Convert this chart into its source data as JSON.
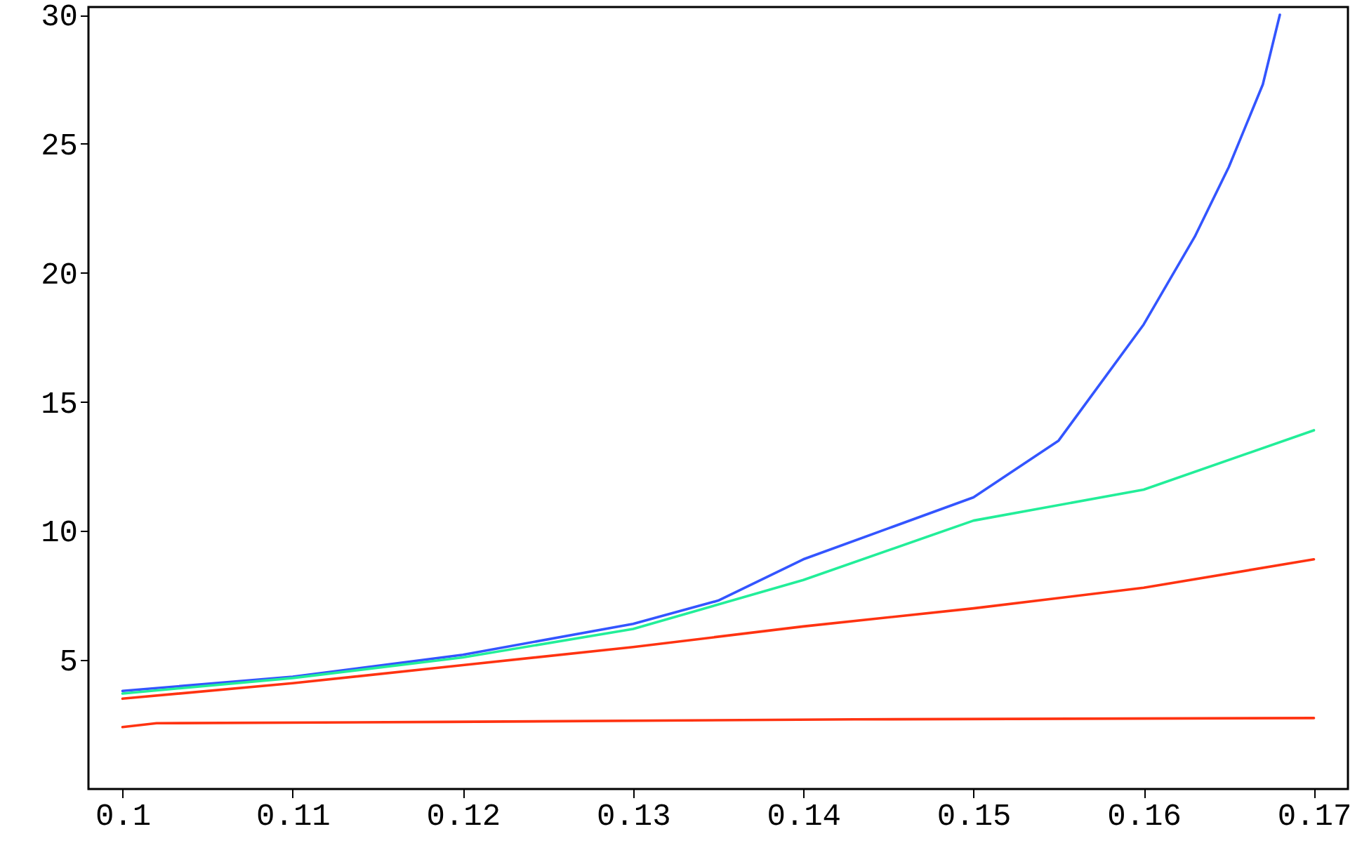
{
  "chart_data": {
    "type": "line",
    "xlim": [
      0.098,
      0.172
    ],
    "ylim": [
      0,
      30.3
    ],
    "xticks": [
      0.1,
      0.11,
      0.12,
      0.13,
      0.14,
      0.15,
      0.16,
      0.17
    ],
    "yticks": [
      5,
      10,
      15,
      20,
      25,
      30
    ],
    "series": [
      {
        "color": "#3355ff",
        "x": [
          0.1,
          0.11,
          0.12,
          0.13,
          0.135,
          0.14,
          0.145,
          0.15,
          0.155,
          0.16,
          0.163,
          0.165,
          0.167,
          0.168
        ],
        "values": [
          3.8,
          4.35,
          5.2,
          6.4,
          7.3,
          8.9,
          10.1,
          11.3,
          13.5,
          18.0,
          21.4,
          24.1,
          27.3,
          30
        ]
      },
      {
        "color": "#22ee99",
        "x": [
          0.1,
          0.11,
          0.12,
          0.13,
          0.14,
          0.15,
          0.16,
          0.17
        ],
        "values": [
          3.7,
          4.3,
          5.1,
          6.2,
          8.1,
          10.4,
          11.6,
          13.9
        ]
      },
      {
        "color": "#ff3311",
        "x": [
          0.1,
          0.11,
          0.12,
          0.13,
          0.14,
          0.15,
          0.16,
          0.17
        ],
        "values": [
          3.5,
          4.1,
          4.8,
          5.5,
          6.3,
          7.0,
          7.8,
          8.9
        ]
      },
      {
        "color": "#ff3311",
        "x": [
          0.1,
          0.102,
          0.119,
          0.143,
          0.17
        ],
        "values": [
          2.4,
          2.55,
          2.6,
          2.7,
          2.75
        ]
      }
    ]
  }
}
